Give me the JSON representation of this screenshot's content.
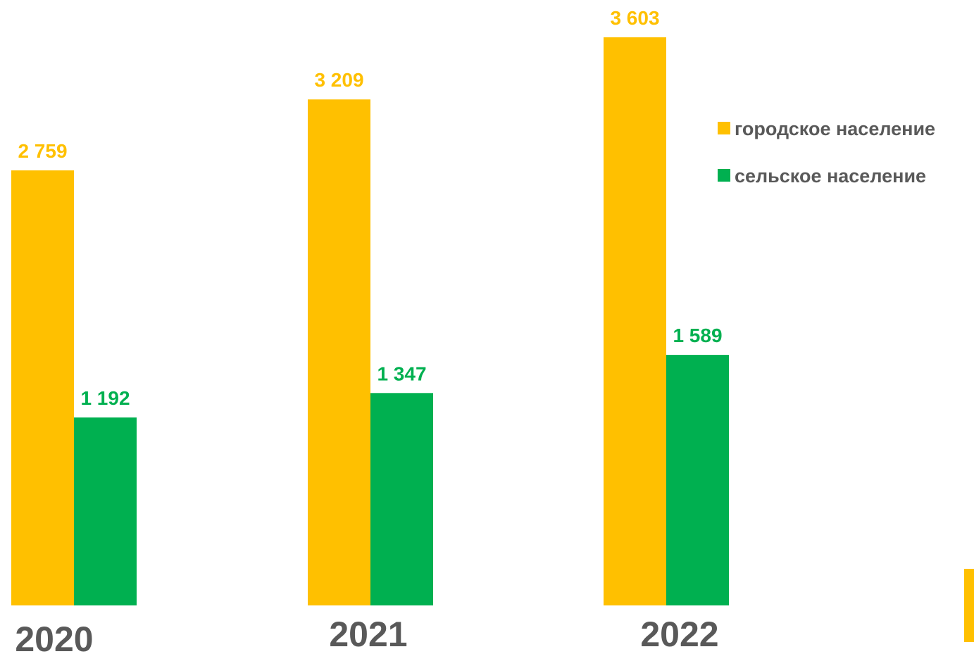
{
  "chart_data": {
    "type": "bar",
    "categories": [
      "2020",
      "2021",
      "2022"
    ],
    "series": [
      {
        "name": "городское население",
        "values": [
          2759,
          3209,
          3603
        ],
        "labels": [
          "2 759",
          "3 209",
          "3 603"
        ],
        "color": "#FFC000"
      },
      {
        "name": "сельское население",
        "values": [
          1192,
          1347,
          1589
        ],
        "labels": [
          "1 192",
          "1 347",
          "1 589"
        ],
        "color": "#00B050"
      }
    ],
    "ylim": [
      0,
      3603
    ],
    "grid": false,
    "legend_position": "right",
    "title": "",
    "xlabel": "",
    "ylabel": ""
  },
  "decoration": {
    "accent_color": "#FFC000"
  }
}
